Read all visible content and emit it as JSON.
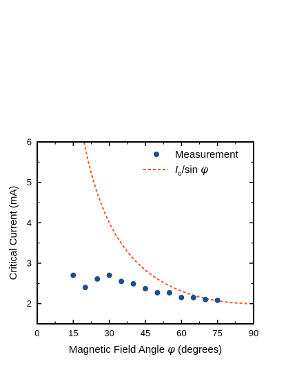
{
  "chart_data": {
    "type": "scatter",
    "xlabel_text": "Magnetic Field Angle",
    "xlabel_symbol": "φ",
    "xlabel_unit": "(degrees)",
    "ylabel": "Critical Current (mA)",
    "xlim": [
      0,
      90
    ],
    "ylim": [
      1.5,
      6
    ],
    "x_ticks": [
      0,
      15,
      30,
      45,
      60,
      75,
      90
    ],
    "y_ticks": [
      2,
      3,
      4,
      5,
      6
    ],
    "legend_position": "top-right",
    "series": [
      {
        "name": "Measurement",
        "kind": "points",
        "color": "#1f4e8c",
        "x": [
          15,
          20,
          25,
          30,
          35,
          40,
          45,
          50,
          55,
          60,
          65,
          70,
          75
        ],
        "y": [
          2.7,
          2.4,
          2.61,
          2.7,
          2.55,
          2.49,
          2.37,
          2.27,
          2.27,
          2.15,
          2.15,
          2.1,
          2.08
        ]
      },
      {
        "name_italic": "I",
        "name_sub": "o",
        "name_rest": "/sin ",
        "name_symbol": "φ",
        "kind": "dashed-line",
        "color": "#f05a28",
        "I0": 2.0,
        "x_range": [
          19.5,
          88
        ]
      }
    ]
  }
}
